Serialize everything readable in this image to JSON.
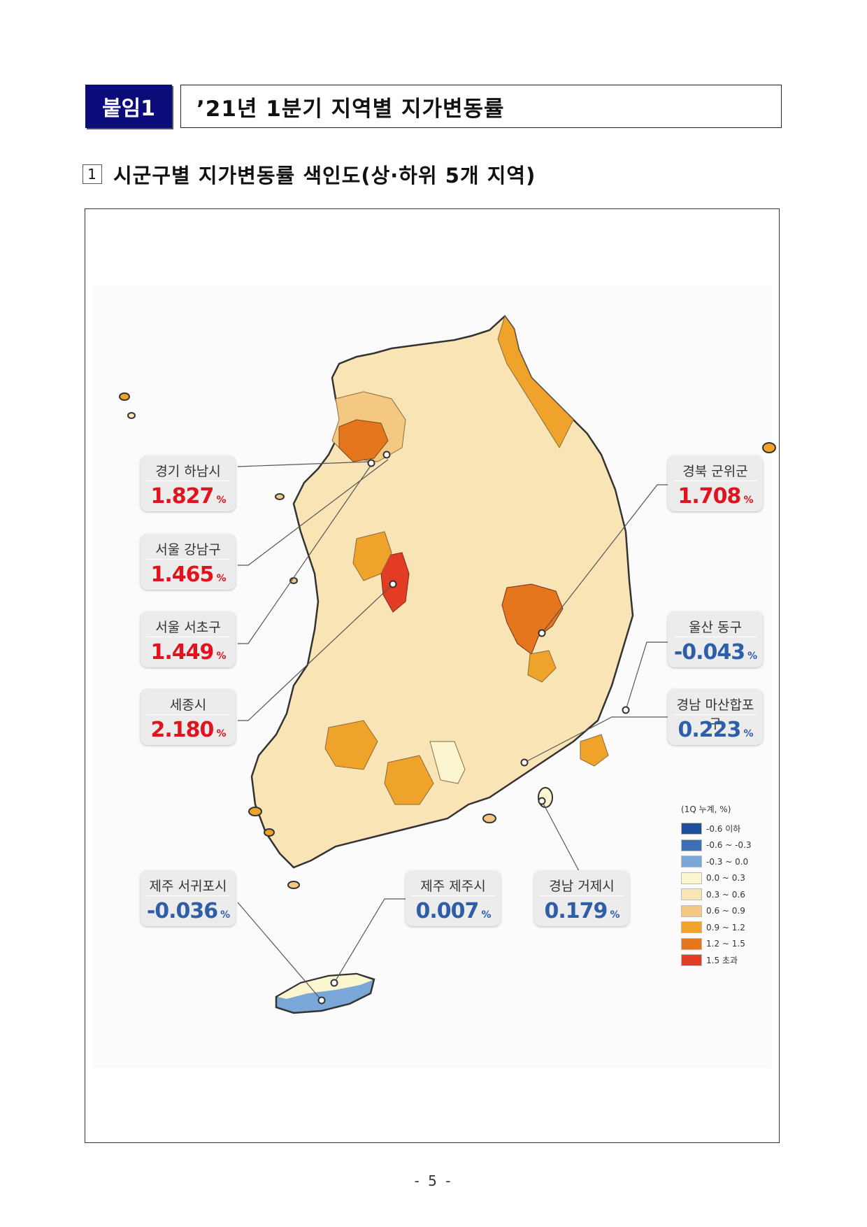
{
  "header": {
    "tag": "붙임1",
    "title": "’21년 1분기 지역별 지가변동률"
  },
  "section": {
    "number": "1",
    "title": "시군구별 지가변동률 색인도(상·하위 5개 지역)"
  },
  "callouts": [
    {
      "name": "경기 하남시",
      "value": "1.827",
      "unit": "%"
    },
    {
      "name": "서울 강남구",
      "value": "1.465",
      "unit": "%"
    },
    {
      "name": "서울 서초구",
      "value": "1.449",
      "unit": "%"
    },
    {
      "name": "세종시",
      "value": "2.180",
      "unit": "%"
    },
    {
      "name": "경북 군위군",
      "value": "1.708",
      "unit": "%"
    },
    {
      "name": "울산 동구",
      "value": "-0.043",
      "unit": "%"
    },
    {
      "name": "경남 마산합포구",
      "value": "0.223",
      "unit": "%"
    },
    {
      "name": "제주 서귀포시",
      "value": "-0.036",
      "unit": "%"
    },
    {
      "name": "제주 제주시",
      "value": "0.007",
      "unit": "%"
    },
    {
      "name": "경남 거제시",
      "value": "0.179",
      "unit": "%"
    }
  ],
  "legend": {
    "title": "(1Q 누계, %)",
    "items": [
      {
        "label": "-0.6 이하",
        "color": "#1f4e9c"
      },
      {
        "label": "-0.6 ~ -0.3",
        "color": "#3b6fb8"
      },
      {
        "label": "-0.3 ~ 0.0",
        "color": "#7aa7d8"
      },
      {
        "label": "0.0 ~ 0.3",
        "color": "#fbf6cf"
      },
      {
        "label": "0.3 ~ 0.6",
        "color": "#f8e4b4"
      },
      {
        "label": "0.6 ~ 0.9",
        "color": "#f4c883"
      },
      {
        "label": "0.9 ~ 1.2",
        "color": "#f0a32a"
      },
      {
        "label": "1.2 ~ 1.5",
        "color": "#e5761d"
      },
      {
        "label": "1.5 초과",
        "color": "#e33c24"
      }
    ]
  },
  "page_number": "- 5 -"
}
